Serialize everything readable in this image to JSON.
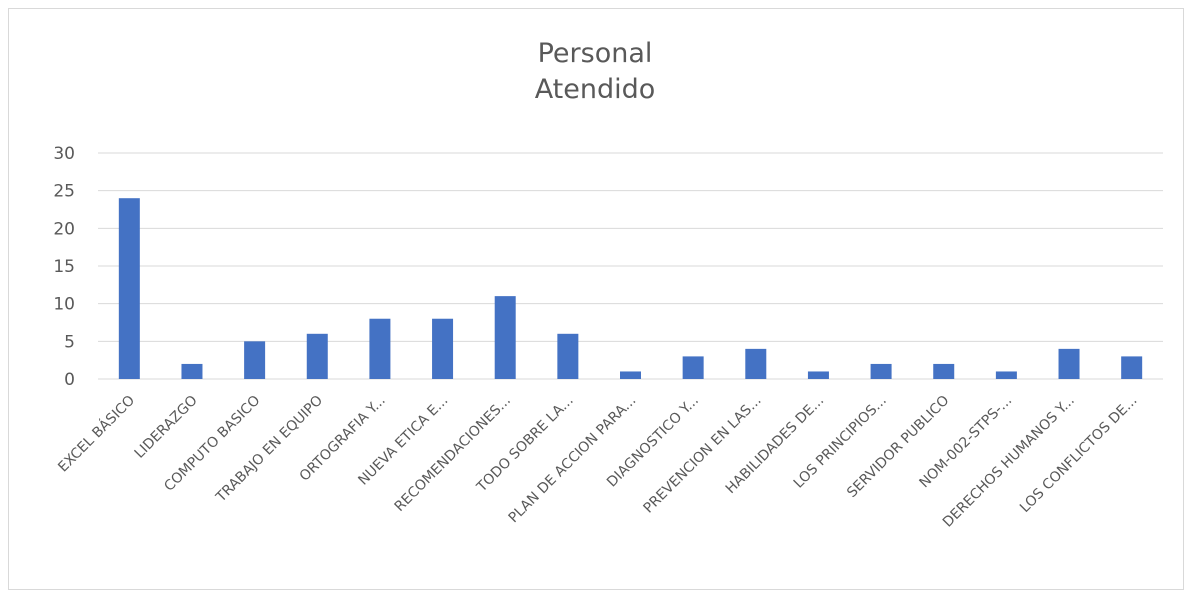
{
  "chart_data": {
    "type": "bar",
    "title_lines": [
      "Personal",
      "Atendido"
    ],
    "categories": [
      "EXCEL BÁSICO",
      "LIDERAZGO",
      "COMPUTO BASICO",
      "TRABAJO EN EQUIPO",
      "ORTOGRAFIA Y...",
      "NUEVA ETICA E...",
      "RECOMENDACIONES...",
      "TODO SOBRE LA...",
      "PLAN DE ACCION PARA...",
      "DIAGNOSTICO Y...",
      "PREVENCION EN LAS...",
      "HABILIDADES DE...",
      "LOS PRINCIPIOS...",
      "SERVIDOR PUBLICO",
      "NOM-002-STPS-...",
      "DERECHOS HUMANOS Y...",
      "LOS CONFLICTOS DE..."
    ],
    "values": [
      24,
      2,
      5,
      6,
      8,
      8,
      11,
      6,
      1,
      3,
      4,
      1,
      2,
      2,
      1,
      4,
      3
    ],
    "ylim": [
      0,
      30
    ],
    "yticks": [
      0,
      5,
      10,
      15,
      20,
      25,
      30
    ],
    "grid": true,
    "legend": "none",
    "bar_color": "#4472c4",
    "grid_color": "#d9d9d9"
  }
}
